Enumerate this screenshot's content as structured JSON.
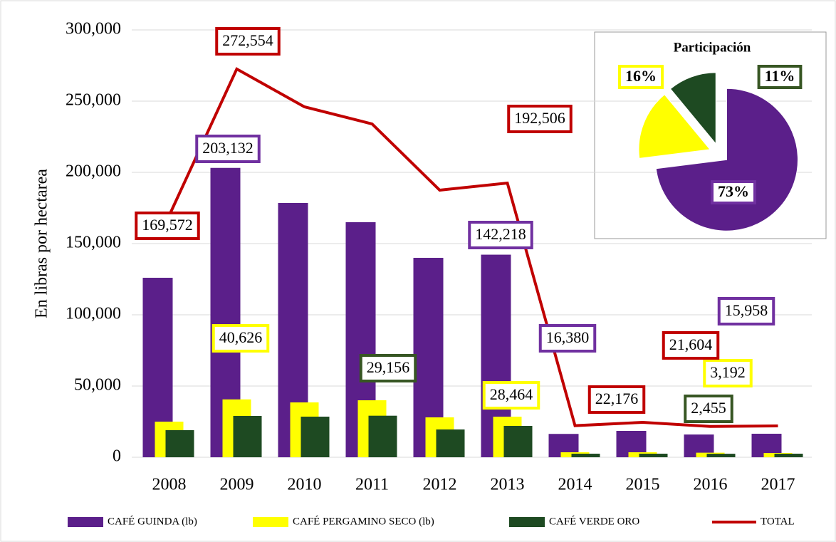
{
  "chart_data": [
    {
      "type": "bar",
      "y_label": "En libras por hectarea",
      "categories": [
        "2008",
        "2009",
        "2010",
        "2011",
        "2012",
        "2013",
        "2014",
        "2015",
        "2016",
        "2017"
      ],
      "ylim": [
        0,
        300000
      ],
      "yticks": [
        {
          "value": 0,
          "label": "0"
        },
        {
          "value": 50000,
          "label": "50,000"
        },
        {
          "value": 100000,
          "label": "100,000"
        },
        {
          "value": 150000,
          "label": "150,000"
        },
        {
          "value": 200000,
          "label": "200,000"
        },
        {
          "value": 250000,
          "label": "250,000"
        },
        {
          "value": 300000,
          "label": "300,000"
        }
      ],
      "grid": true,
      "legend": "bottom",
      "series": [
        {
          "name": "CAFÉ GUINDA (lb)",
          "color": "#5b1f8a",
          "label_color": "#7030a0",
          "values": [
            126000,
            203132,
            178500,
            165000,
            140000,
            142218,
            16380,
            18500,
            15958,
            16500
          ],
          "value_labels": [
            null,
            "203,132",
            null,
            null,
            null,
            "142,218",
            "16,380",
            null,
            "15,958",
            null
          ]
        },
        {
          "name": "CAFÉ PERGAMINO SECO (lb)",
          "color": "#ffff00",
          "label_color": "#ffff00",
          "values": [
            25000,
            40626,
            38500,
            40000,
            28000,
            28464,
            3500,
            3500,
            3192,
            3000
          ],
          "value_labels": [
            null,
            "40,626",
            null,
            null,
            null,
            "28,464",
            null,
            null,
            "3,192",
            null
          ]
        },
        {
          "name": "CAFÉ VERDE ORO",
          "color": "#1e4a22",
          "label_color": "#375623",
          "values": [
            19000,
            29000,
            28500,
            29156,
            19500,
            22000,
            2500,
            2500,
            2455,
            2500
          ],
          "value_labels": [
            null,
            null,
            null,
            "29,156",
            null,
            null,
            null,
            null,
            "2,455",
            null
          ]
        },
        {
          "name": "TOTAL",
          "type": "line",
          "color": "#c00000",
          "label_color": "#c00000",
          "values": [
            169572,
            272554,
            246000,
            234000,
            187500,
            192506,
            22176,
            24500,
            21604,
            22000
          ],
          "value_labels": [
            "169,572",
            "272,554",
            null,
            null,
            null,
            "192,506",
            "22,176",
            null,
            "21,604",
            null
          ]
        }
      ]
    },
    {
      "type": "pie",
      "title": "Participación",
      "values": [
        73,
        16,
        11
      ],
      "value_labels": [
        "73%",
        "16%",
        "11%"
      ],
      "colors": [
        "#5b1f8a",
        "#ffff00",
        "#1e4a22"
      ],
      "label_colors": [
        "#7030a0",
        "#ffff00",
        "#375623"
      ]
    }
  ]
}
